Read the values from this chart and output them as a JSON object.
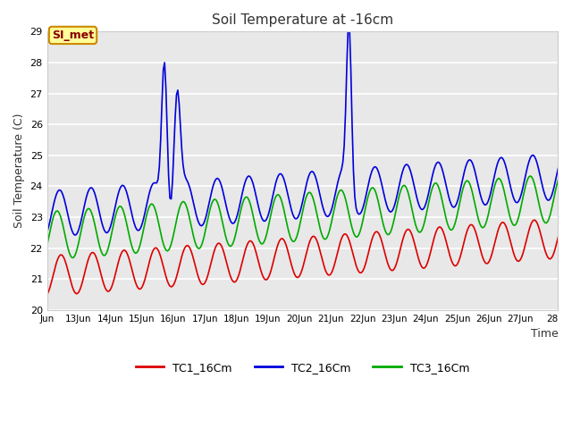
{
  "title": "Soil Temperature at -16cm",
  "xlabel": "Time",
  "ylabel": "Soil Temperature (C)",
  "ylim": [
    20.0,
    29.0
  ],
  "yticks": [
    20.0,
    21.0,
    22.0,
    23.0,
    24.0,
    25.0,
    26.0,
    27.0,
    28.0,
    29.0
  ],
  "fig_bg_color": "#ffffff",
  "plot_bg_color": "#e8e8e8",
  "grid_color": "#ffffff",
  "annotation_text": "SI_met",
  "annotation_bg": "#ffff99",
  "annotation_border": "#cc8800",
  "annotation_text_color": "#880000",
  "series": {
    "TC1_16Cm": {
      "color": "#dd0000",
      "lw": 1.2
    },
    "TC2_16Cm": {
      "color": "#0000dd",
      "lw": 1.2
    },
    "TC3_16Cm": {
      "color": "#00aa00",
      "lw": 1.2
    }
  },
  "x_start_day": 12.0,
  "x_end_day": 28.2,
  "xtick_days": [
    12,
    13,
    14,
    15,
    16,
    17,
    18,
    19,
    20,
    21,
    22,
    23,
    24,
    25,
    26,
    27,
    28
  ],
  "xtick_labels": [
    "Jun",
    "13Jun",
    "14Jun",
    "15Jun",
    "16Jun",
    "17Jun",
    "18Jun",
    "19Jun",
    "20Jun",
    "21Jun",
    "22Jun",
    "23Jun",
    "24Jun",
    "25Jun",
    "26Jun",
    "27Jun",
    "28"
  ]
}
